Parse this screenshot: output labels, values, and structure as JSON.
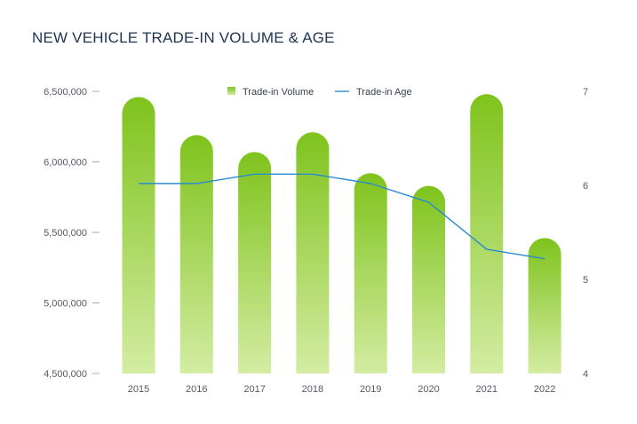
{
  "chart_data": {
    "type": "bar",
    "title": "NEW VEHICLE TRADE-IN VOLUME & AGE",
    "categories": [
      "2015",
      "2016",
      "2017",
      "2018",
      "2019",
      "2020",
      "2021",
      "2022"
    ],
    "series": [
      {
        "name": "Trade-in Volume",
        "type": "bar",
        "axis": "left",
        "values": [
          6460000,
          6190000,
          6070000,
          6210000,
          5920000,
          5830000,
          6480000,
          5460000
        ]
      },
      {
        "name": "Trade-in Age",
        "type": "line",
        "axis": "right",
        "values": [
          6.02,
          6.02,
          6.12,
          6.12,
          6.02,
          5.82,
          5.32,
          5.22
        ]
      }
    ],
    "y_left": {
      "range": [
        4500000,
        6500000
      ],
      "ticks": [
        4500000,
        5000000,
        5500000,
        6000000,
        6500000
      ],
      "tick_labels": [
        "4,500,000",
        "5,000,000",
        "5,500,000",
        "6,000,000",
        "6,500,000"
      ]
    },
    "y_right": {
      "range": [
        4,
        7
      ],
      "ticks": [
        4,
        5,
        6,
        7
      ],
      "tick_labels": [
        "4",
        "5",
        "6",
        "7"
      ]
    },
    "grid": false,
    "legend_position": "top-center",
    "colors": {
      "bar_top": "#7fc31c",
      "bar_bottom": "#d3eca2",
      "line": "#2a8ad1",
      "title": "#1f3354",
      "tick_mark": "#aaaaaa"
    }
  }
}
